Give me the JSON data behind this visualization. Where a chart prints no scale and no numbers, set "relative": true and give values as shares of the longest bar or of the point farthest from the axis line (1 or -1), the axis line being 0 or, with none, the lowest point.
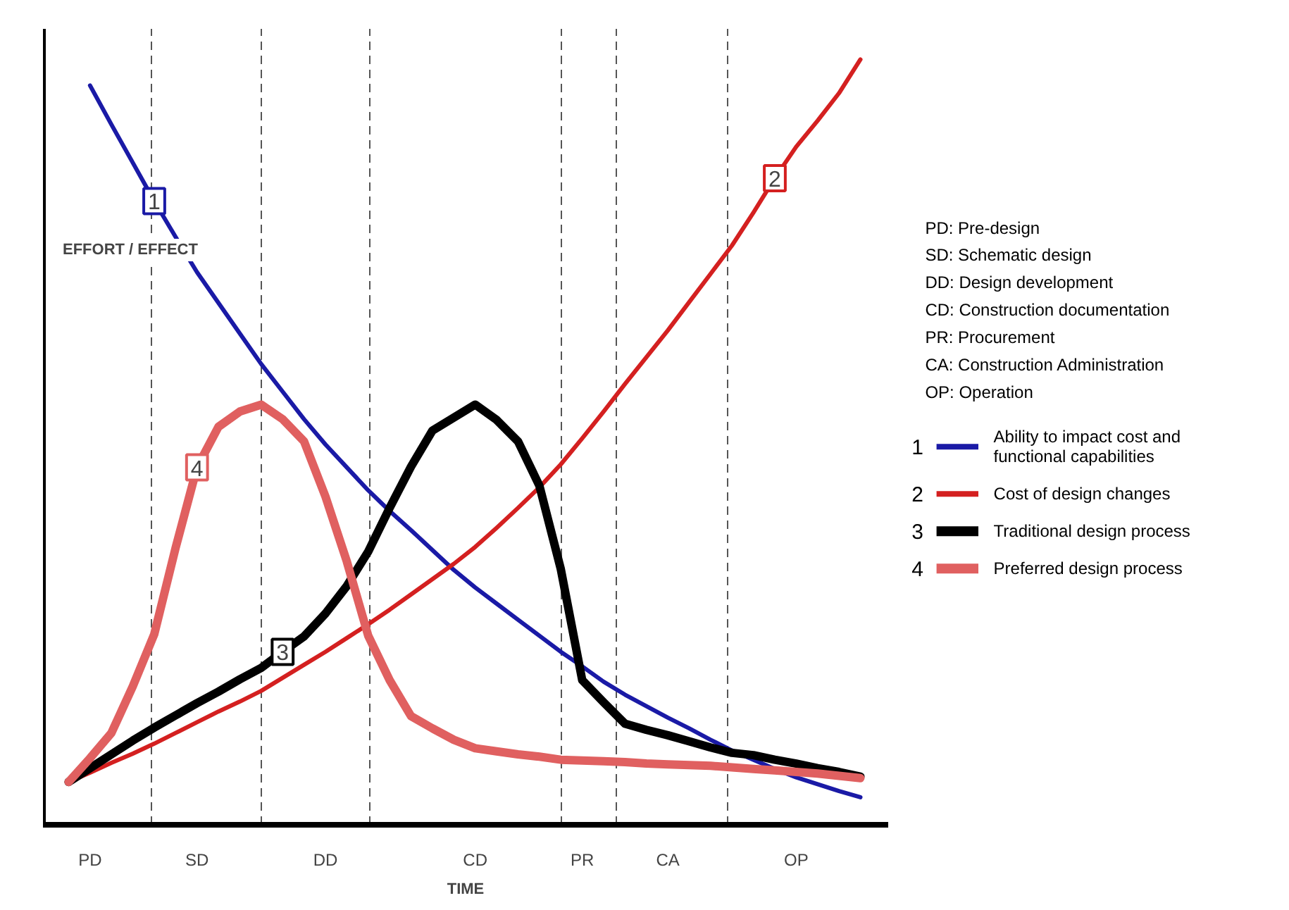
{
  "chart_data": {
    "type": "line",
    "relative": true,
    "grid": "x",
    "legend": "right",
    "ylabel": "EFFORT / EFFECT",
    "xlabel": "TIME",
    "categories": [
      null,
      "PD",
      null,
      null,
      null,
      null,
      "SD",
      null,
      null,
      null,
      null,
      null,
      "DD",
      null,
      null,
      null,
      null,
      null,
      null,
      "CD",
      null,
      null,
      null,
      null,
      "PR",
      null,
      null,
      null,
      "CA",
      null,
      null,
      null,
      null,
      null,
      "OP",
      null,
      null,
      null
    ],
    "series": [
      {
        "name": "Ability to impact cost and functional capabilities",
        "color": "#1a1aa6",
        "values": [
          null,
          0.966,
          0.915,
          0.865,
          0.815,
          0.768,
          0.722,
          0.682,
          0.642,
          0.602,
          0.566,
          0.53,
          0.497,
          0.467,
          0.437,
          0.41,
          0.385,
          0.359,
          0.333,
          0.31,
          0.289,
          0.268,
          0.247,
          0.226,
          0.207,
          0.187,
          0.17,
          0.155,
          0.14,
          0.126,
          0.111,
          0.097,
          0.085,
          0.073,
          0.062,
          0.053,
          0.044,
          0.036
        ]
      },
      {
        "name": "Cost of design changes",
        "color": "#d42020",
        "values": [
          0.056,
          0.068,
          0.081,
          0.093,
          0.106,
          0.12,
          0.134,
          0.148,
          0.161,
          0.175,
          0.192,
          0.209,
          0.226,
          0.244,
          0.262,
          0.281,
          0.301,
          0.321,
          0.341,
          0.363,
          0.388,
          0.414,
          0.441,
          0.471,
          0.505,
          0.54,
          0.576,
          0.611,
          0.646,
          0.683,
          0.72,
          0.757,
          0.8,
          0.845,
          0.886,
          0.92,
          0.956,
          1.0
        ]
      },
      {
        "name": "Traditional design process",
        "color": "#000000",
        "values": [
          0.056,
          0.074,
          0.092,
          0.11,
          0.127,
          0.143,
          0.159,
          0.174,
          0.19,
          0.205,
          0.226,
          0.246,
          0.276,
          0.312,
          0.357,
          0.414,
          0.468,
          0.515,
          0.532,
          0.549,
          0.529,
          0.501,
          0.443,
          0.334,
          0.189,
          0.16,
          0.132,
          0.124,
          0.117,
          0.109,
          0.101,
          0.094,
          0.091,
          0.085,
          0.08,
          0.074,
          0.069,
          0.063
        ]
      },
      {
        "name": "Preferred design process",
        "color": "#e06060",
        "values": [
          0.056,
          0.087,
          0.12,
          0.181,
          0.249,
          0.362,
          0.467,
          0.52,
          0.54,
          0.549,
          0.53,
          0.501,
          0.429,
          0.344,
          0.247,
          0.189,
          0.142,
          0.126,
          0.111,
          0.1,
          0.096,
          0.092,
          0.089,
          0.085,
          0.084,
          0.083,
          0.082,
          0.08,
          0.079,
          0.078,
          0.077,
          0.075,
          0.073,
          0.071,
          0.069,
          0.067,
          0.064,
          0.061
        ]
      }
    ],
    "annotations": [
      "PD: Pre-design",
      "SD: Schematic design",
      "DD: Design development",
      "CD: Construction documentation",
      "PR: Procurement",
      "CA: Construction Administration",
      "OP: Operation",
      {
        "text": "1",
        "y": 0.815
      },
      {
        "text": "2",
        "y": 0.845
      },
      {
        "text": "3",
        "y": 0.226
      },
      {
        "text": "4",
        "y": 0.467
      }
    ]
  }
}
